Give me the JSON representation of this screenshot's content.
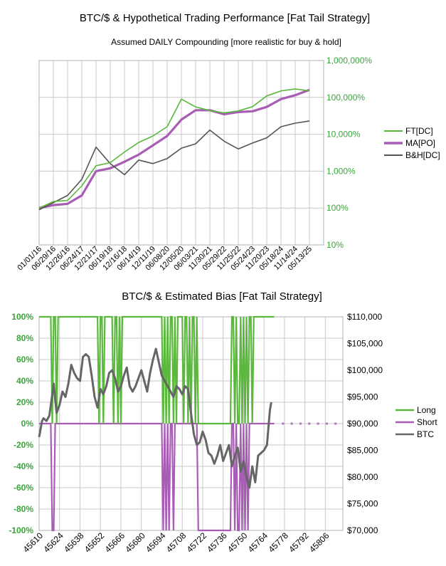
{
  "chart_data": [
    {
      "type": "line",
      "title": "BTC/$ & Hypothetical Trading Performance [Fat Tail Strategy]",
      "subtitle": "Assumed DAILY Compounding [more realistic for buy & hold]",
      "y_scale": "log",
      "ylim": [
        0.1,
        10000
      ],
      "y_ticks": [
        0.1,
        1,
        10,
        100,
        1000,
        10000
      ],
      "y_tick_labels": [
        "10%",
        "100%",
        "1,000%",
        "10,000%",
        "100,000%",
        "1,000,000%"
      ],
      "x_tick_labels": [
        "01/01/16",
        "06/29/16",
        "12/26/16",
        "06/24/17",
        "12/21/17",
        "06/19/18",
        "12/16/18",
        "06/14/19",
        "12/11/19",
        "06/08/20",
        "12/05/20",
        "06/03/21",
        "11/30/21",
        "05/29/22",
        "11/25/22",
        "05/24/23",
        "11/20/23",
        "05/18/24",
        "11/14/24",
        "05/13/25"
      ],
      "grid": true,
      "legend_position": "right",
      "series": [
        {
          "name": "FT[DC]",
          "color": "#5ab83c",
          "x": [
            "01/01/16",
            "06/29/16",
            "12/26/16",
            "06/24/17",
            "12/21/17",
            "06/19/18",
            "12/16/18",
            "06/14/19",
            "12/11/19",
            "06/08/20",
            "12/05/20",
            "06/03/21",
            "11/30/21",
            "05/29/22",
            "11/25/22",
            "05/24/23",
            "11/20/23",
            "05/18/24",
            "11/14/24",
            "05/13/25"
          ],
          "values": [
            1.0,
            1.5,
            1.6,
            4.0,
            14.0,
            17.0,
            33.0,
            60.0,
            90.0,
            160.0,
            900.0,
            550.0,
            440.0,
            380.0,
            430.0,
            560.0,
            1100.0,
            1500.0,
            1700.0,
            1500.0
          ]
        },
        {
          "name": "MA[PO]",
          "color": "#a85cb6",
          "x": [
            "01/01/16",
            "06/29/16",
            "12/26/16",
            "06/24/17",
            "12/21/17",
            "06/19/18",
            "12/16/18",
            "06/14/19",
            "12/11/19",
            "06/08/20",
            "12/05/20",
            "06/03/21",
            "11/30/21",
            "05/29/22",
            "11/25/22",
            "05/24/23",
            "11/20/23",
            "05/18/24",
            "11/14/24",
            "05/13/25"
          ],
          "values": [
            1.0,
            1.2,
            1.3,
            2.2,
            10.0,
            12.0,
            18.0,
            28.0,
            50.0,
            90.0,
            250.0,
            450.0,
            450.0,
            350.0,
            400.0,
            420.0,
            550.0,
            900.0,
            1150.0,
            1600.0
          ]
        },
        {
          "name": "B&H[DC]",
          "color": "#555555",
          "x": [
            "01/01/16",
            "06/29/16",
            "12/26/16",
            "06/24/17",
            "12/21/17",
            "06/19/18",
            "12/16/18",
            "06/14/19",
            "12/11/19",
            "06/08/20",
            "12/05/20",
            "06/03/21",
            "11/30/21",
            "05/29/22",
            "11/25/22",
            "05/24/23",
            "11/20/23",
            "05/18/24",
            "11/14/24",
            "05/13/25"
          ],
          "values": [
            0.9,
            1.4,
            2.2,
            6.0,
            45.0,
            16.0,
            8.0,
            20.0,
            16.0,
            22.0,
            42.0,
            55.0,
            130.0,
            65.0,
            40.0,
            58.0,
            80.0,
            160.0,
            200.0,
            230.0
          ]
        }
      ]
    },
    {
      "type": "line",
      "title": "BTC/$ & Estimated Bias [Fat Tail Strategy]",
      "ylim_left": [
        -100,
        100
      ],
      "y_left_ticks": [
        100,
        80,
        60,
        40,
        20,
        0,
        -20,
        -40,
        -60,
        -80,
        -100
      ],
      "y_left_tick_labels": [
        "100%",
        "80%",
        "60%",
        "40%",
        "20%",
        "0%",
        "-20%",
        "-40%",
        "-60%",
        "-80%",
        "-100%"
      ],
      "ylim_right": [
        70000,
        110000
      ],
      "y_right_ticks": [
        110000,
        105000,
        100000,
        95000,
        90000,
        85000,
        80000,
        75000,
        70000
      ],
      "y_right_tick_labels": [
        "$110,000",
        "$105,000",
        "$100,000",
        "$95,000",
        "$90,000",
        "$85,000",
        "$80,000",
        "$75,000",
        "$70,000"
      ],
      "xlim": [
        45610,
        45818
      ],
      "x_ticks": [
        45610,
        45624,
        45638,
        45652,
        45666,
        45680,
        45694,
        45708,
        45722,
        45736,
        45750,
        45764,
        45778,
        45792,
        45806
      ],
      "grid": true,
      "legend_position": "right",
      "series": [
        {
          "name": "Long",
          "color": "#5ab83c",
          "axis": "left",
          "x": [
            45610,
            45618,
            45619,
            45620,
            45621,
            45622,
            45623,
            45624,
            45625,
            45650,
            45651,
            45652,
            45653,
            45654,
            45655,
            45660,
            45661,
            45662,
            45663,
            45664,
            45665,
            45666,
            45667,
            45668,
            45669,
            45694,
            45695,
            45696,
            45697,
            45698,
            45699,
            45700,
            45701,
            45702,
            45703,
            45704,
            45705,
            45708,
            45709,
            45710,
            45711,
            45712,
            45713,
            45714,
            45715,
            45716,
            45717,
            45718,
            45719,
            45741,
            45742,
            45743,
            45744,
            45745,
            45746,
            45747,
            45748,
            45749,
            45750,
            45751,
            45752,
            45753,
            45754,
            45755,
            45756,
            45757,
            45758,
            45771
          ],
          "values": [
            100,
            100,
            0,
            100,
            100,
            0,
            100,
            100,
            100,
            100,
            0,
            100,
            100,
            0,
            100,
            100,
            0,
            100,
            100,
            0,
            100,
            0,
            100,
            100,
            100,
            100,
            0,
            100,
            0,
            100,
            0,
            100,
            100,
            0,
            100,
            0,
            100,
            100,
            0,
            100,
            100,
            0,
            100,
            0,
            100,
            100,
            0,
            100,
            0,
            0,
            100,
            100,
            0,
            100,
            0,
            0,
            100,
            0,
            100,
            0,
            100,
            0,
            100,
            100,
            0,
            100,
            100,
            100
          ]
        },
        {
          "name": "Short",
          "color": "#a85cb6",
          "axis": "left",
          "x": [
            45610,
            45618,
            45619,
            45620,
            45621,
            45694,
            45695,
            45696,
            45697,
            45698,
            45699,
            45700,
            45701,
            45702,
            45703,
            45704,
            45718,
            45719,
            45720,
            45741,
            45742,
            45743,
            45744,
            45745,
            45746,
            45747,
            45748,
            45749,
            45750,
            45751,
            45752,
            45753,
            45754,
            45755,
            45756,
            45771
          ],
          "values": [
            0,
            0,
            -100,
            -100,
            0,
            0,
            -100,
            0,
            -100,
            0,
            -100,
            0,
            0,
            -100,
            0,
            0,
            0,
            -100,
            -100,
            -100,
            0,
            0,
            -100,
            0,
            -100,
            -100,
            0,
            -100,
            0,
            -100,
            0,
            -100,
            0,
            0,
            0,
            0
          ]
        },
        {
          "name": "BTC",
          "color": "#666666",
          "axis": "right",
          "x": [
            45610,
            45611,
            45612,
            45613,
            45615,
            45617,
            45619,
            45620,
            45621,
            45622,
            45624,
            45626,
            45628,
            45630,
            45632,
            45634,
            45636,
            45638,
            45640,
            45642,
            45644,
            45646,
            45648,
            45650,
            45652,
            45654,
            45656,
            45658,
            45660,
            45662,
            45664,
            45666,
            45668,
            45670,
            45672,
            45674,
            45676,
            45678,
            45680,
            45682,
            45684,
            45686,
            45688,
            45690,
            45692,
            45694,
            45696,
            45698,
            45700,
            45702,
            45704,
            45706,
            45708,
            45710,
            45712,
            45714,
            45716,
            45718,
            45720,
            45722,
            45724,
            45726,
            45728,
            45730,
            45732,
            45734,
            45736,
            45738,
            45740,
            45742,
            45744,
            45746,
            45748,
            45750,
            45752,
            45754,
            45756,
            45758,
            45760,
            45762,
            45764,
            45766,
            45768,
            45769
          ],
          "values": [
            87500,
            89000,
            90500,
            91000,
            90500,
            91500,
            95500,
            97500,
            94500,
            92000,
            93500,
            96000,
            95000,
            97500,
            101000,
            99500,
            98500,
            98000,
            102500,
            103000,
            102500,
            99000,
            95000,
            93000,
            96500,
            95500,
            97000,
            99500,
            100000,
            98500,
            96000,
            97000,
            99000,
            100500,
            97000,
            96000,
            97000,
            98500,
            100000,
            98000,
            96000,
            99500,
            102000,
            104000,
            101500,
            99000,
            98000,
            97000,
            96000,
            95000,
            97000,
            96500,
            95500,
            97000,
            96500,
            92000,
            88000,
            86000,
            86500,
            88500,
            87000,
            84500,
            84000,
            82500,
            84000,
            86000,
            83000,
            84500,
            86000,
            82000,
            84000,
            85500,
            81000,
            83000,
            80000,
            78000,
            82000,
            79000,
            84000,
            84500,
            85000,
            86000,
            92500,
            94000
          ]
        }
      ]
    }
  ]
}
